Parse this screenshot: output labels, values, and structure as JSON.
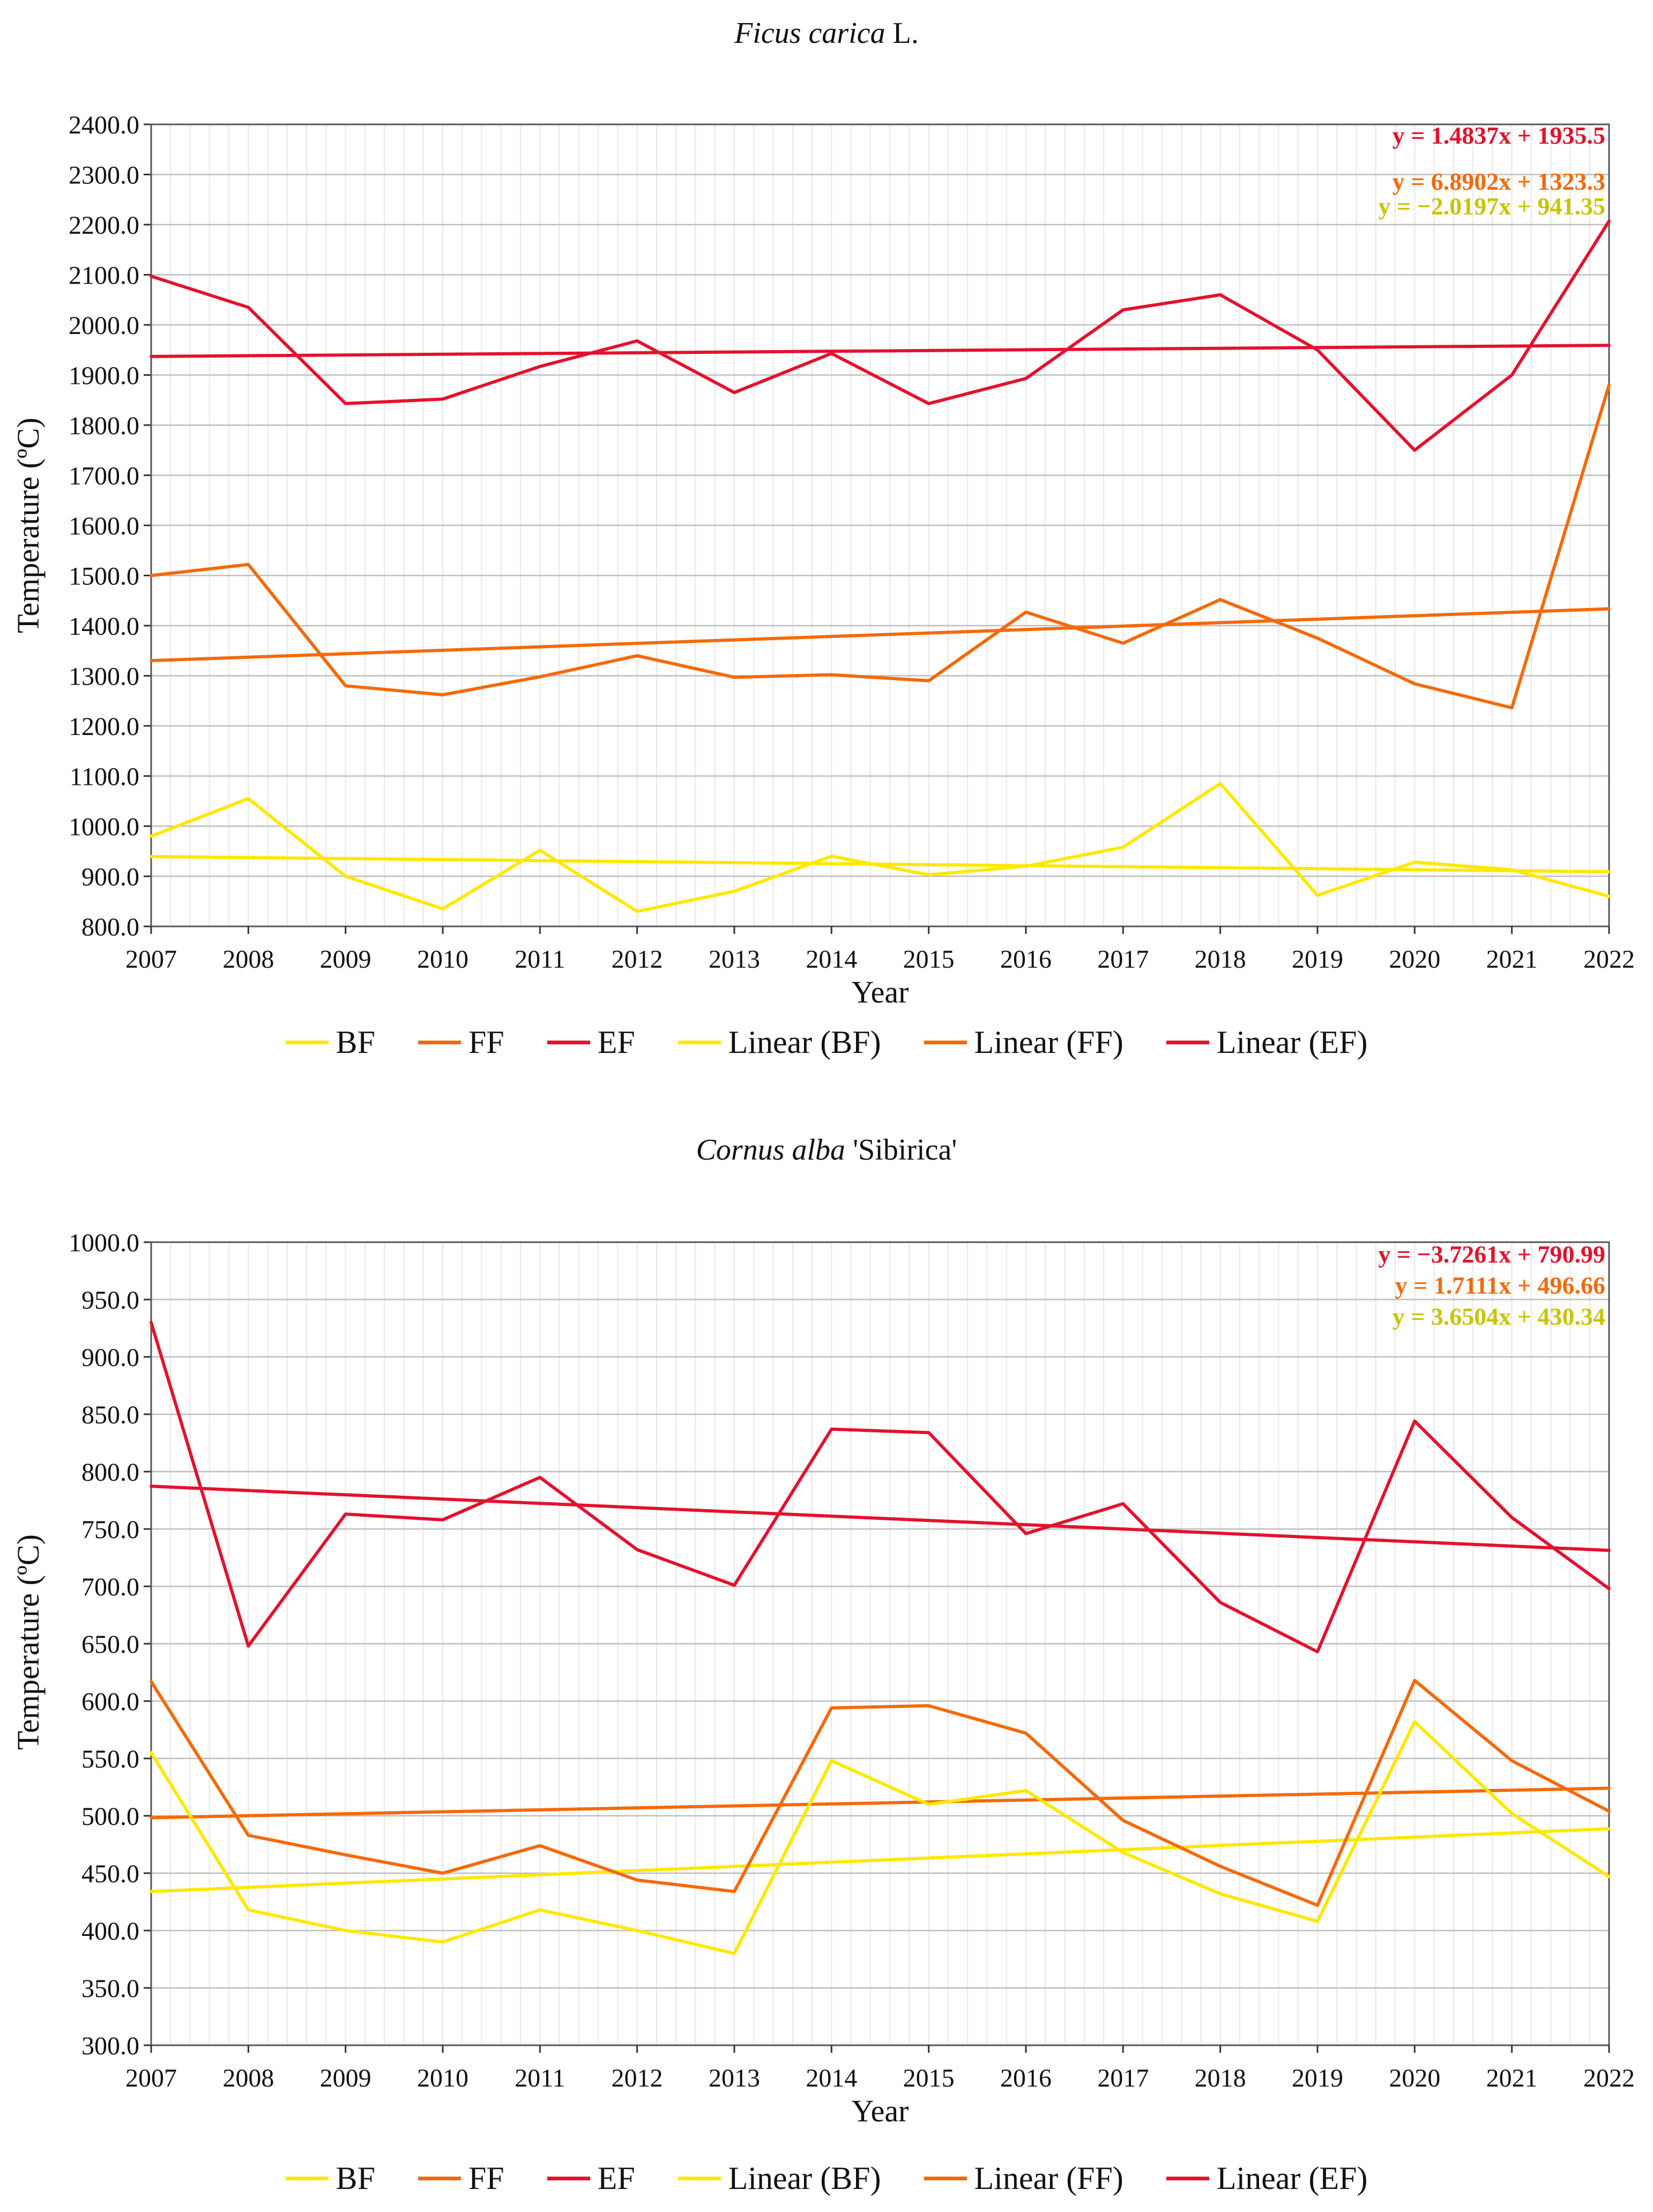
{
  "chart_data": [
    {
      "type": "line",
      "title_italic": "Ficus carica",
      "title_rest": " L.",
      "xlabel": "Year",
      "ylabel": "Temperature  (ºC)",
      "categories": [
        "2007",
        "2008",
        "2009",
        "2010",
        "2011",
        "2012",
        "2013",
        "2014",
        "2015",
        "2016",
        "2017",
        "2018",
        "2019",
        "2020",
        "2021",
        "2022"
      ],
      "ylim": [
        800,
        2400
      ],
      "yticks": [
        "800.0",
        "900.0",
        "1000.0",
        "1100.0",
        "1200.0",
        "1300.0",
        "1400.0",
        "1500.0",
        "1600.0",
        "1700.0",
        "1800.0",
        "1900.0",
        "2000.0",
        "2100.0",
        "2200.0",
        "2300.0",
        "2400.0"
      ],
      "ytick_step": 100,
      "series": [
        {
          "name": "BF",
          "color": "#FFE800",
          "values": [
            980,
            1055,
            900,
            835,
            952,
            830,
            870,
            940,
            903,
            920,
            958,
            1085,
            862,
            928,
            913,
            860
          ]
        },
        {
          "name": "FF",
          "color": "#F46A0A",
          "values": [
            1500,
            1522,
            1280,
            1262,
            1298,
            1340,
            1297,
            1302,
            1290,
            1427,
            1365,
            1452,
            1375,
            1284,
            1236,
            1880
          ]
        },
        {
          "name": "EF",
          "color": "#E3122E",
          "values": [
            2097,
            2035,
            1843,
            1852,
            1917,
            1968,
            1865,
            1943,
            1843,
            1893,
            2030,
            2060,
            1950,
            1750,
            1900,
            2207
          ]
        }
      ],
      "trendlines": [
        {
          "name": "Linear (BF)",
          "color": "#FFE800",
          "slope": -2.0197,
          "intercept": 941.35
        },
        {
          "name": "Linear (FF)",
          "color": "#F46A0A",
          "slope": 6.8902,
          "intercept": 1323.3
        },
        {
          "name": "Linear (EF)",
          "color": "#E3122E",
          "slope": 1.4837,
          "intercept": 1935.5
        }
      ],
      "equations": [
        {
          "text": "y = 1.4837x + 1935.5",
          "color": "#E3122E"
        },
        {
          "text": "y = 6.8902x + 1323.3",
          "color": "#F46A0A"
        },
        {
          "text": "y = −2.0197x + 941.35",
          "color": "#C9C500"
        }
      ],
      "legend": [
        "BF",
        "FF",
        "EF",
        "Linear (BF)",
        "Linear (FF)",
        "Linear (EF)"
      ]
    },
    {
      "type": "line",
      "title_italic": "Cornus alba",
      "title_rest": " 'Sibirica'",
      "xlabel": "Year",
      "ylabel": "Temperature  (ºC)",
      "categories": [
        "2007",
        "2008",
        "2009",
        "2010",
        "2011",
        "2012",
        "2013",
        "2014",
        "2015",
        "2016",
        "2017",
        "2018",
        "2019",
        "2020",
        "2021",
        "2022"
      ],
      "ylim": [
        300,
        1000
      ],
      "yticks": [
        "300.0",
        "350.0",
        "400.0",
        "450.0",
        "500.0",
        "550.0",
        "600.0",
        "650.0",
        "700.0",
        "750.0",
        "800.0",
        "850.0",
        "900.0",
        "950.0",
        "1000.0"
      ],
      "ytick_step": 50,
      "series": [
        {
          "name": "BF",
          "color": "#FFE800",
          "values": [
            555,
            418,
            400,
            390,
            418,
            400,
            380,
            548,
            510,
            522,
            468,
            432,
            408,
            582,
            502,
            447
          ]
        },
        {
          "name": "FF",
          "color": "#F46A0A",
          "values": [
            617,
            483,
            466,
            450,
            474,
            444,
            434,
            594,
            596,
            572,
            496,
            456,
            422,
            618,
            548,
            504
          ]
        },
        {
          "name": "EF",
          "color": "#E3122E",
          "values": [
            930,
            648,
            763,
            758,
            795,
            732,
            701,
            837,
            834,
            746,
            772,
            686,
            643,
            844,
            760,
            698
          ]
        }
      ],
      "trendlines": [
        {
          "name": "Linear (BF)",
          "color": "#FFE800",
          "slope": 3.6504,
          "intercept": 430.34
        },
        {
          "name": "Linear (FF)",
          "color": "#F46A0A",
          "slope": 1.7111,
          "intercept": 496.66
        },
        {
          "name": "Linear (EF)",
          "color": "#E3122E",
          "slope": -3.7261,
          "intercept": 790.99
        }
      ],
      "equations": [
        {
          "text": "y = −3.7261x + 790.99",
          "color": "#E3122E"
        },
        {
          "text": "y = 1.7111x + 496.66",
          "color": "#F46A0A"
        },
        {
          "text": "y = 3.6504x + 430.34",
          "color": "#C9C500"
        }
      ],
      "legend": [
        "BF",
        "FF",
        "EF",
        "Linear (BF)",
        "Linear (FF)",
        "Linear (EF)"
      ]
    }
  ]
}
